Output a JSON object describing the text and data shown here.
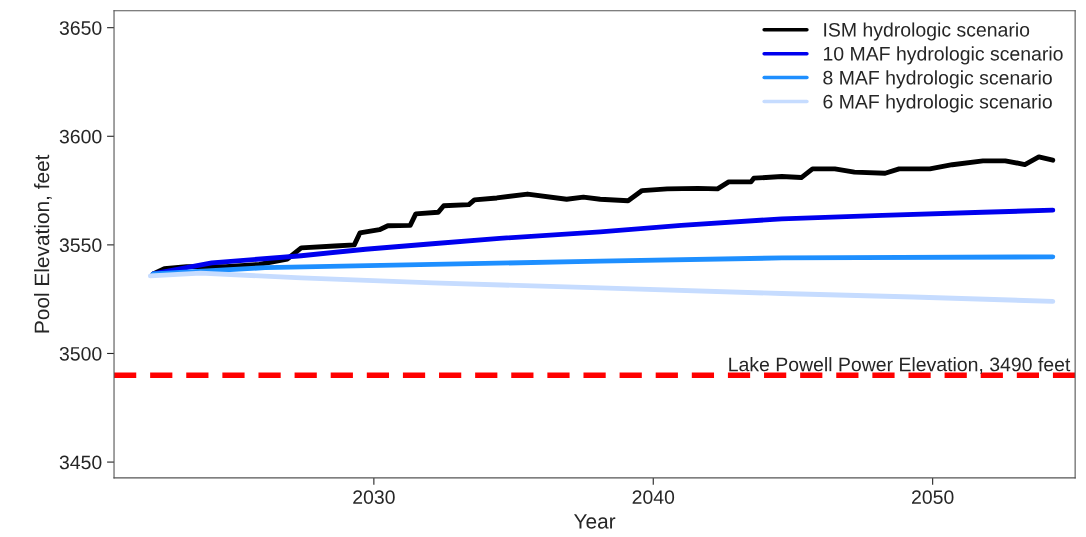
{
  "chart_data": {
    "type": "line",
    "xlabel": "Year",
    "ylabel": "Pool Elevation, feet",
    "xlim": [
      2020.7,
      2055.1
    ],
    "xticks": [
      2030,
      2040,
      2050
    ],
    "ylim": [
      3442.7,
      3657.8
    ],
    "yticks": [
      3450,
      3500,
      3550,
      3600,
      3650
    ],
    "grid": false,
    "legend": "top right",
    "line_style": "solid",
    "marker": "none",
    "series": [
      {
        "name": "ISM hydrologic scenario",
        "color": "#000000",
        "x": [
          2022.1,
          2022.5,
          2023.3,
          2024.7,
          2025.9,
          2026.9,
          2027.4,
          2028.6,
          2029.3,
          2029.5,
          2030.2,
          2030.5,
          2031.3,
          2031.5,
          2032.3,
          2032.5,
          2033.4,
          2033.6,
          2034.4,
          2035.5,
          2036.9,
          2037.5,
          2038.1,
          2039.1,
          2039.6,
          2040.5,
          2041.6,
          2042.3,
          2042.7,
          2043.5,
          2043.6,
          2044.6,
          2045.3,
          2045.7,
          2046.5,
          2047.2,
          2048.3,
          2048.8,
          2049.9,
          2050.7,
          2051.8,
          2052.6,
          2053.3,
          2053.8,
          2054.3
        ],
        "values": [
          3536.6,
          3539,
          3540,
          3540,
          3541,
          3543.5,
          3548.6,
          3549.5,
          3550,
          3555.5,
          3557,
          3558.8,
          3559,
          3564.3,
          3565,
          3568,
          3568.5,
          3570.7,
          3571.6,
          3573.4,
          3571,
          3572,
          3571,
          3570.3,
          3575,
          3575.8,
          3576,
          3575.8,
          3579,
          3579,
          3580.7,
          3581.5,
          3581,
          3585,
          3585,
          3583.5,
          3583,
          3585,
          3585,
          3586.9,
          3588.7,
          3588.7,
          3587,
          3590.5,
          3589
        ]
      },
      {
        "name": "10 MAF hydrologic scenario",
        "color": "#0000ee",
        "x": [
          2022.1,
          2024.2,
          2027.4,
          2029.7,
          2032.1,
          2034.5,
          2038.1,
          2041.0,
          2044.6,
          2048.2,
          2051.8,
          2054.3
        ],
        "values": [
          3536.6,
          3541.7,
          3545,
          3548,
          3550.5,
          3553,
          3556,
          3559,
          3562,
          3563.6,
          3565,
          3566
        ]
      },
      {
        "name": "8 MAF hydrologic scenario",
        "color": "#1e8fff",
        "x": [
          2022.1,
          2026.1,
          2032.1,
          2038.1,
          2044.6,
          2054.3
        ],
        "values": [
          3536.6,
          3539.5,
          3541,
          3542.5,
          3544,
          3544.5
        ]
      },
      {
        "name": "6 MAF hydrologic scenario",
        "color": "#c6dcff",
        "x": [
          2022.0,
          2023.8,
          2027.4,
          2032.1,
          2038.1,
          2044.6,
          2049.3,
          2054.3
        ],
        "values": [
          3535.7,
          3537,
          3534.8,
          3532.5,
          3530.2,
          3527.6,
          3526,
          3524
        ]
      }
    ],
    "ref_lines": [
      {
        "axis": "y",
        "value": 3490,
        "label": "Lake Powell Power Elevation, 3490 feet",
        "color": "#ff0000",
        "line_style": "dashed"
      }
    ]
  }
}
